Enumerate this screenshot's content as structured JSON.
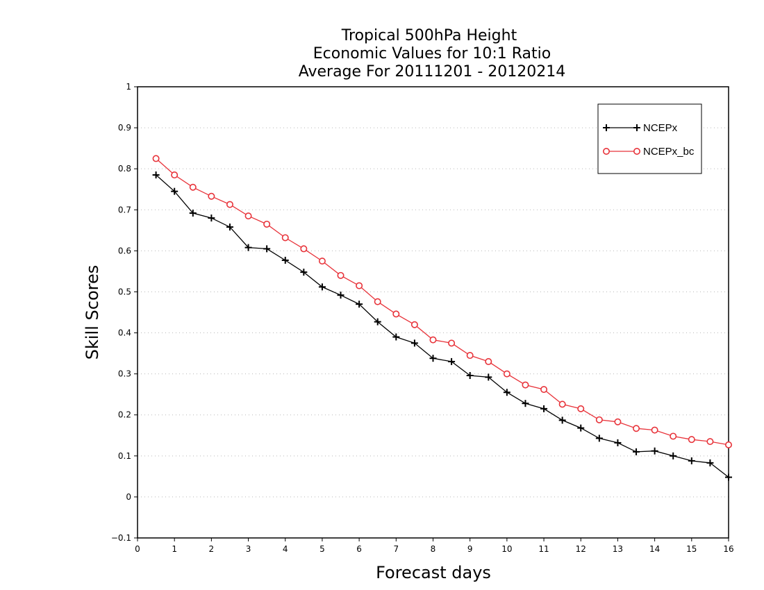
{
  "chart_data": {
    "type": "line",
    "title_lines": [
      "Tropical 500hPa Height",
      "Economic Values for 10:1 Ratio",
      "Average For 20111201 - 20120214"
    ],
    "xlabel": "Forecast days",
    "ylabel": "Skill Scores",
    "xlim": [
      0,
      16
    ],
    "ylim": [
      -0.1,
      1
    ],
    "x_ticks": [
      "0",
      "1",
      "2",
      "3",
      "4",
      "5",
      "6",
      "7",
      "8",
      "9",
      "10",
      "11",
      "12",
      "13",
      "14",
      "15",
      "16"
    ],
    "y_ticks": [
      "−0.1",
      "0",
      "0.1",
      "0.2",
      "0.3",
      "0.4",
      "0.5",
      "0.6",
      "0.7",
      "0.8",
      "0.9",
      "1"
    ],
    "grid": true,
    "legend_position": "top-right",
    "x": [
      0.5,
      1,
      1.5,
      2,
      2.5,
      3,
      3.5,
      4,
      4.5,
      5,
      5.5,
      6,
      6.5,
      7,
      7.5,
      8,
      8.5,
      9,
      9.5,
      10,
      10.5,
      11,
      11.5,
      12,
      12.5,
      13,
      13.5,
      14,
      14.5,
      15,
      15.5,
      16
    ],
    "series": [
      {
        "name": "NCEPx",
        "color": "#000000",
        "marker": "plus",
        "values": [
          0.785,
          0.745,
          0.692,
          0.68,
          0.658,
          0.608,
          0.605,
          0.577,
          0.548,
          0.512,
          0.492,
          0.47,
          0.427,
          0.39,
          0.375,
          0.338,
          0.33,
          0.296,
          0.292,
          0.255,
          0.228,
          0.215,
          0.187,
          0.168,
          0.143,
          0.132,
          0.11,
          0.112,
          0.1,
          0.088,
          0.083,
          0.048
        ]
      },
      {
        "name": "NCEPx_bc",
        "color": "#e8333a",
        "marker": "circle",
        "values": [
          0.825,
          0.785,
          0.755,
          0.733,
          0.713,
          0.685,
          0.665,
          0.632,
          0.605,
          0.575,
          0.54,
          0.515,
          0.476,
          0.446,
          0.42,
          0.383,
          0.375,
          0.345,
          0.33,
          0.3,
          0.273,
          0.262,
          0.226,
          0.215,
          0.188,
          0.183,
          0.167,
          0.163,
          0.148,
          0.14,
          0.135,
          0.127
        ]
      }
    ]
  }
}
